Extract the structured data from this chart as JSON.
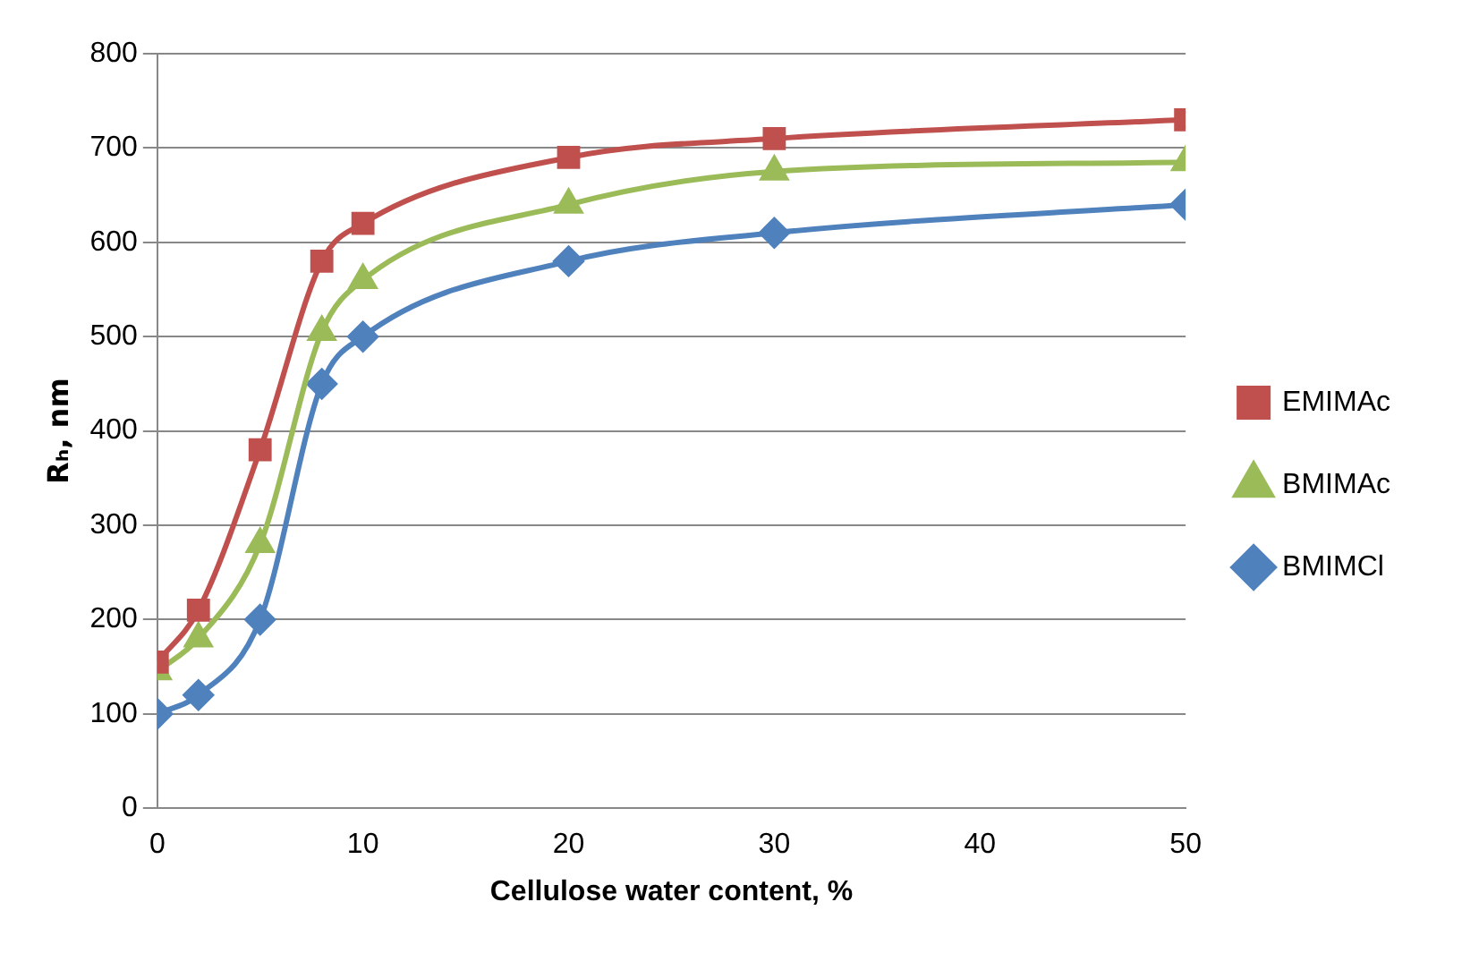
{
  "chart_data": {
    "type": "line",
    "xlabel": "Cellulose water content, %",
    "ylabel": "Rₕ, nm",
    "x": [
      0,
      2,
      5,
      8,
      10,
      20,
      30,
      50
    ],
    "series": [
      {
        "name": "EMIMAc",
        "color": "#c0504d",
        "marker": "square",
        "values": [
          155,
          210,
          380,
          580,
          620,
          690,
          710,
          730
        ]
      },
      {
        "name": "BMIMAc",
        "color": "#9bbb59",
        "marker": "triangle",
        "values": [
          145,
          180,
          280,
          505,
          560,
          640,
          675,
          685
        ]
      },
      {
        "name": "BMIMCl",
        "color": "#4f81bd",
        "marker": "diamond",
        "values": [
          100,
          120,
          200,
          450,
          500,
          580,
          610,
          640
        ]
      }
    ],
    "xlim": [
      0,
      50
    ],
    "xticks": [
      0,
      10,
      20,
      30,
      40,
      50
    ],
    "ylim": [
      0,
      800
    ],
    "yticks": [
      0,
      100,
      200,
      300,
      400,
      500,
      600,
      700,
      800
    ],
    "grid": "y",
    "legend": "right",
    "line_style": "solid"
  }
}
